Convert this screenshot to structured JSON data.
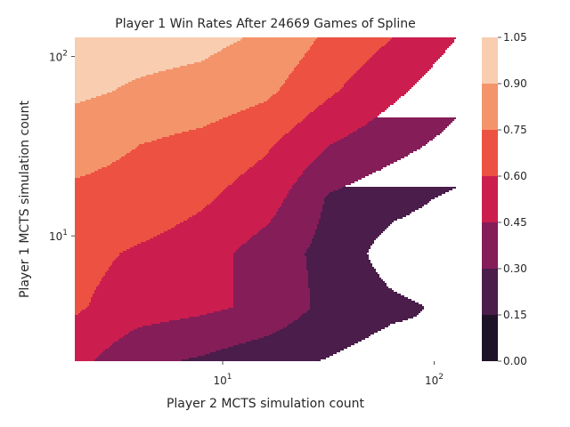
{
  "chart_data": {
    "type": "heatmap",
    "subtype": "filled-contour",
    "title": "Player 1 Win Rates After 24669 Games of Spline",
    "xlabel": "Player 2 MCTS simulation count",
    "ylabel": "Player 1 MCTS simulation count",
    "x_scale": "log",
    "y_scale": "log",
    "xlim": [
      2,
      128
    ],
    "ylim": [
      2,
      128
    ],
    "x_ticks": [
      {
        "value": 10,
        "base": "10",
        "exp": "1"
      },
      {
        "value": 100,
        "base": "10",
        "exp": "2"
      }
    ],
    "y_ticks": [
      {
        "value": 10,
        "base": "10",
        "exp": "1"
      },
      {
        "value": 100,
        "base": "10",
        "exp": "2"
      }
    ],
    "x": [
      2,
      4,
      8,
      16,
      32,
      64,
      128
    ],
    "y": [
      2,
      4,
      8,
      16,
      32,
      64,
      128
    ],
    "z": [
      [
        0.5,
        0.33,
        0.28,
        0.2,
        0.14,
        0.08,
        0.15
      ],
      [
        0.62,
        0.52,
        0.48,
        0.42,
        0.25,
        0.18,
        0.12
      ],
      [
        0.65,
        0.58,
        0.52,
        0.38,
        0.25,
        0.08,
        0.05
      ],
      [
        0.72,
        0.7,
        0.62,
        0.52,
        0.28,
        0.2,
        0.12
      ],
      [
        0.8,
        0.75,
        0.7,
        0.62,
        0.45,
        0.35,
        0.25
      ],
      [
        0.93,
        0.88,
        0.85,
        0.78,
        0.62,
        0.48,
        0.35
      ],
      [
        0.98,
        0.96,
        0.94,
        0.88,
        0.72,
        0.6,
        0.45
      ]
    ],
    "levels": [
      0.0,
      0.15,
      0.3,
      0.45,
      0.6,
      0.75,
      0.9,
      1.05
    ],
    "colorbar_labels": [
      "0.00",
      "0.15",
      "0.30",
      "0.45",
      "0.60",
      "0.75",
      "0.90",
      "1.05"
    ],
    "colors": [
      "#1e1228",
      "#4a1d4b",
      "#851d59",
      "#cb1e4f",
      "#ed5141",
      "#f4946b",
      "#f8cdb0"
    ],
    "grid": false,
    "colorbar": "right"
  }
}
